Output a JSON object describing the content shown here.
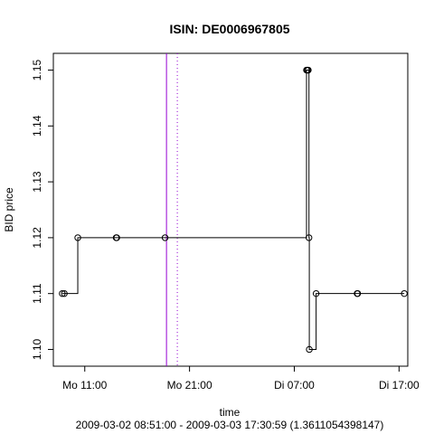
{
  "chart_data": {
    "type": "line",
    "title": "ISIN: DE0006967805",
    "xlabel": "time",
    "ylabel": "BID price",
    "subtitle": "2009-03-02 08:51:00 - 2009-03-03 17:30:59 (1.3611054398147)",
    "x_range": [
      "2009-03-02 08:00",
      "2009-03-03 17:50"
    ],
    "ylim": [
      1.097,
      1.153
    ],
    "x_ticks": [
      {
        "t": "2009-03-02 11:00",
        "label": "Mo 11:00"
      },
      {
        "t": "2009-03-02 21:00",
        "label": "Mo 21:00"
      },
      {
        "t": "2009-03-03 07:00",
        "label": "Di 07:00"
      },
      {
        "t": "2009-03-03 17:00",
        "label": "Di 17:00"
      }
    ],
    "y_ticks": [
      1.1,
      1.11,
      1.12,
      1.13,
      1.14,
      1.15
    ],
    "y_tick_labels": [
      "1.10",
      "1.11",
      "1.12",
      "1.13",
      "1.14",
      "1.15"
    ],
    "step": true,
    "points": [
      {
        "t": "2009-03-02 08:51",
        "y": 1.11
      },
      {
        "t": "2009-03-02 09:03",
        "y": 1.11
      },
      {
        "t": "2009-03-02 10:20",
        "y": 1.12
      },
      {
        "t": "2009-03-02 14:00",
        "y": 1.12
      },
      {
        "t": "2009-03-02 14:03",
        "y": 1.12
      },
      {
        "t": "2009-03-02 18:40",
        "y": 1.12
      },
      {
        "t": "2009-03-03 08:10",
        "y": 1.15
      },
      {
        "t": "2009-03-03 08:15",
        "y": 1.15
      },
      {
        "t": "2009-03-03 08:20",
        "y": 1.15
      },
      {
        "t": "2009-03-03 08:24",
        "y": 1.12
      },
      {
        "t": "2009-03-03 08:26",
        "y": 1.1
      },
      {
        "t": "2009-03-03 09:05",
        "y": 1.11
      },
      {
        "t": "2009-03-03 13:00",
        "y": 1.11
      },
      {
        "t": "2009-03-03 13:03",
        "y": 1.11
      },
      {
        "t": "2009-03-03 17:30",
        "y": 1.11
      }
    ],
    "vlines": [
      {
        "t": "2009-03-02 18:48",
        "color": "#9400d3",
        "style": "solid"
      },
      {
        "t": "2009-03-02 19:50",
        "color": "#9400d3",
        "style": "dotted"
      }
    ],
    "colors": {
      "series": "#000000",
      "marker": "#000000",
      "vline": "#9400d3",
      "axis": "#000000"
    },
    "grid": false,
    "markers": "open-circle"
  }
}
